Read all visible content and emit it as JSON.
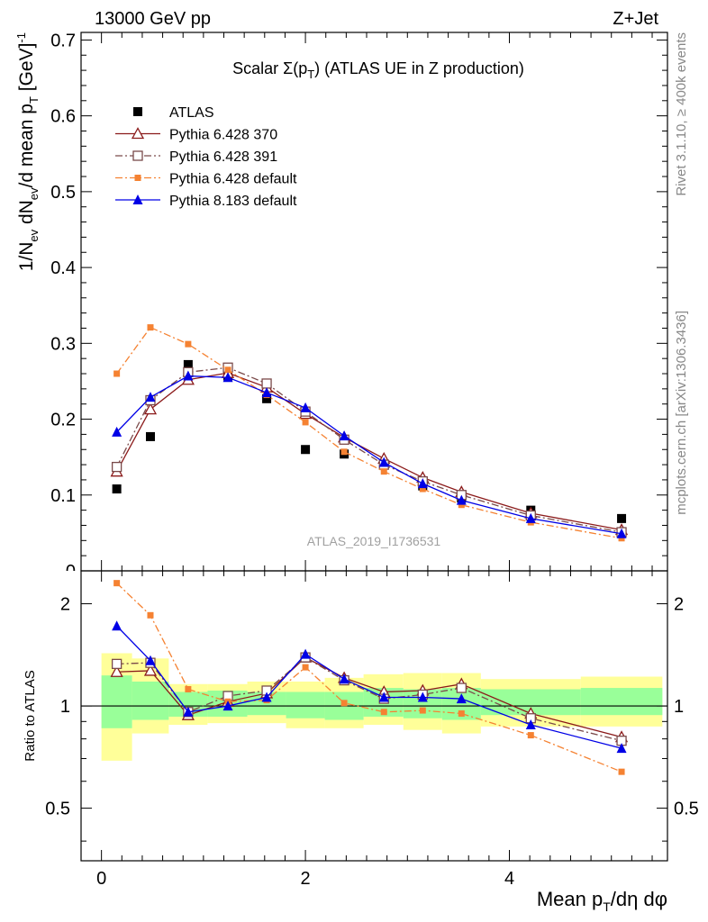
{
  "header": {
    "energy_label": "13000 GeV pp",
    "process_label": "Z+Jet"
  },
  "side_labels": {
    "rivet": "Rivet 3.1.10, ≥ 400k events",
    "mcplots": "mcplots.cern.ch [arXiv:1306.3436]"
  },
  "chart_data": [
    {
      "type": "scatter",
      "title": "Scalar Σ(p_T) (ATLAS UE in Z production)",
      "title_main": "Scalar Σ(p",
      "title_sub": "T",
      "title_rest": ") (ATLAS UE in Z production)",
      "ylabel": "1/N_ev dN_ev/d mean p_T [GeV]^-1",
      "xlabel": "",
      "xlim": [
        -0.2,
        5.55
      ],
      "ylim": [
        0,
        0.71
      ],
      "yticks": [
        0.1,
        0.2,
        0.3,
        0.4,
        0.5,
        0.6,
        0.7
      ],
      "ytick_labels": [
        "0.1",
        "0.2",
        "0.3",
        "0.4",
        "0.5",
        "0.6",
        "0.7"
      ],
      "bottom_tick_label": "0",
      "watermark": "ATLAS_2019_I1736531",
      "legend_position": "top-left",
      "x": [
        0.15,
        0.48,
        0.85,
        1.24,
        1.62,
        2.0,
        2.38,
        2.77,
        3.15,
        3.53,
        4.21,
        5.1
      ],
      "series": [
        {
          "name": "ATLAS",
          "color": "#000000",
          "marker": "square-filled",
          "line": "none",
          "values": [
            0.108,
            0.177,
            0.272,
            0.257,
            0.227,
            0.16,
            0.154,
            0.14,
            0.112,
            0.096,
            0.08,
            0.069
          ]
        },
        {
          "name": "Pythia 6.428 370",
          "color": "#8b1a1a",
          "marker": "triangle-open",
          "line": "solid",
          "values": [
            0.131,
            0.213,
            0.252,
            0.261,
            0.242,
            0.207,
            0.176,
            0.148,
            0.123,
            0.104,
            0.076,
            0.054
          ]
        },
        {
          "name": "Pythia 6.428 391",
          "color": "#7a4a4a",
          "marker": "square-open",
          "line": "dashdot",
          "values": [
            0.137,
            0.225,
            0.262,
            0.268,
            0.247,
            0.21,
            0.173,
            0.14,
            0.118,
            0.1,
            0.073,
            0.051
          ]
        },
        {
          "name": "Pythia 6.428 default",
          "color": "#f58232",
          "marker": "square-small",
          "line": "dashdot",
          "values": [
            0.26,
            0.321,
            0.299,
            0.265,
            0.232,
            0.196,
            0.157,
            0.131,
            0.108,
            0.087,
            0.064,
            0.043
          ]
        },
        {
          "name": "Pythia 8.183 default",
          "color": "#0000e6",
          "marker": "triangle-filled",
          "line": "solid",
          "values": [
            0.183,
            0.229,
            0.257,
            0.255,
            0.235,
            0.215,
            0.178,
            0.143,
            0.115,
            0.093,
            0.069,
            0.049
          ]
        }
      ]
    },
    {
      "type": "scatter",
      "title": "",
      "ylabel": "Ratio to ATLAS",
      "xlabel": "Mean p_T/dη dφ",
      "xlabel_main": "Mean p",
      "xlabel_sub": "T",
      "xlabel_rest": "/dη dφ",
      "xlim": [
        -0.2,
        5.55
      ],
      "ylim": [
        0.35,
        2.5
      ],
      "yscale": "log",
      "yticks": [
        0.5,
        1,
        2
      ],
      "ytick_labels": [
        "0.5",
        "1",
        "2"
      ],
      "xticks": [
        0,
        2,
        4
      ],
      "xtick_labels": [
        "0",
        "2",
        "4"
      ],
      "reference_line": 1,
      "x": [
        0.15,
        0.48,
        0.85,
        1.24,
        1.62,
        2.0,
        2.38,
        2.77,
        3.15,
        3.53,
        4.21,
        5.1
      ],
      "bin_edges": [
        0.0,
        0.3,
        0.66,
        1.04,
        1.43,
        1.81,
        2.19,
        2.57,
        2.96,
        3.34,
        3.72,
        4.7,
        5.5
      ],
      "band_inner": [
        [
          0.86,
          1.23
        ],
        [
          0.91,
          1.18
        ],
        [
          0.93,
          1.1
        ],
        [
          0.93,
          1.11
        ],
        [
          0.94,
          1.1
        ],
        [
          0.92,
          1.1
        ],
        [
          0.91,
          1.1
        ],
        [
          0.93,
          1.13
        ],
        [
          0.92,
          1.12
        ],
        [
          0.91,
          1.13
        ],
        [
          0.94,
          1.12
        ],
        [
          0.94,
          1.13
        ]
      ],
      "band_outer": [
        [
          0.69,
          1.43
        ],
        [
          0.83,
          1.38
        ],
        [
          0.88,
          1.16
        ],
        [
          0.89,
          1.16
        ],
        [
          0.89,
          1.18
        ],
        [
          0.86,
          1.18
        ],
        [
          0.86,
          1.21
        ],
        [
          0.88,
          1.24
        ],
        [
          0.85,
          1.25
        ],
        [
          0.83,
          1.25
        ],
        [
          0.87,
          1.2
        ],
        [
          0.87,
          1.22
        ]
      ],
      "series": [
        {
          "name": "Pythia 6.428 370",
          "color": "#8b1a1a",
          "marker": "triangle-open",
          "line": "solid",
          "values": [
            1.26,
            1.27,
            0.94,
            1.03,
            1.09,
            1.39,
            1.21,
            1.1,
            1.11,
            1.16,
            0.95,
            0.81
          ]
        },
        {
          "name": "Pythia 6.428 391",
          "color": "#7a4a4a",
          "marker": "square-open",
          "line": "dashdot",
          "values": [
            1.33,
            1.34,
            0.96,
            1.07,
            1.11,
            1.39,
            1.19,
            1.05,
            1.08,
            1.13,
            0.92,
            0.79
          ]
        },
        {
          "name": "Pythia 6.428 default",
          "color": "#f58232",
          "marker": "square-small",
          "line": "dashdot",
          "values": [
            2.3,
            1.85,
            1.12,
            1.03,
            1.04,
            1.3,
            1.02,
            0.96,
            0.97,
            0.95,
            0.82,
            0.64
          ]
        },
        {
          "name": "Pythia 8.183 default",
          "color": "#0000e6",
          "marker": "triangle-filled",
          "line": "solid",
          "values": [
            1.72,
            1.36,
            0.96,
            1.0,
            1.06,
            1.42,
            1.2,
            1.06,
            1.06,
            1.05,
            0.88,
            0.75
          ]
        }
      ]
    }
  ],
  "colors": {
    "band_inner": "#99ff99",
    "band_outer": "#ffff99"
  }
}
